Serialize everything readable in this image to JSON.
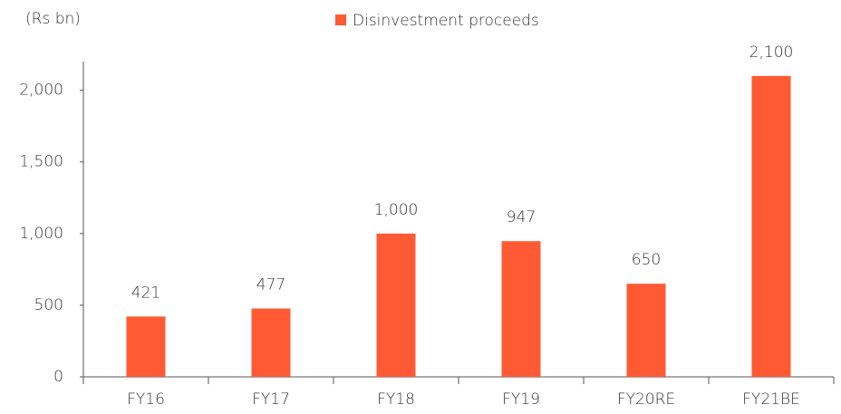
{
  "chart_data": {
    "type": "bar",
    "y_unit": "(Rs bn)",
    "categories": [
      "FY16",
      "FY17",
      "FY18",
      "FY19",
      "FY20RE",
      "FY21BE"
    ],
    "series": [
      {
        "name": "Disinvestment proceeds",
        "color": "#ff5a33",
        "values": [
          421,
          477,
          1000,
          947,
          650,
          2100
        ],
        "value_labels": [
          "421",
          "477",
          "1,000",
          "947",
          "650",
          "2,100"
        ]
      }
    ],
    "ylim": [
      0,
      2200
    ],
    "yticks": [
      0,
      500,
      {
        "value": 1000,
        "label": "1,000"
      },
      {
        "value": 1500,
        "label": "1,500"
      },
      {
        "value": 2000,
        "label": "2,000"
      }
    ],
    "grid": false,
    "legend": "top"
  }
}
